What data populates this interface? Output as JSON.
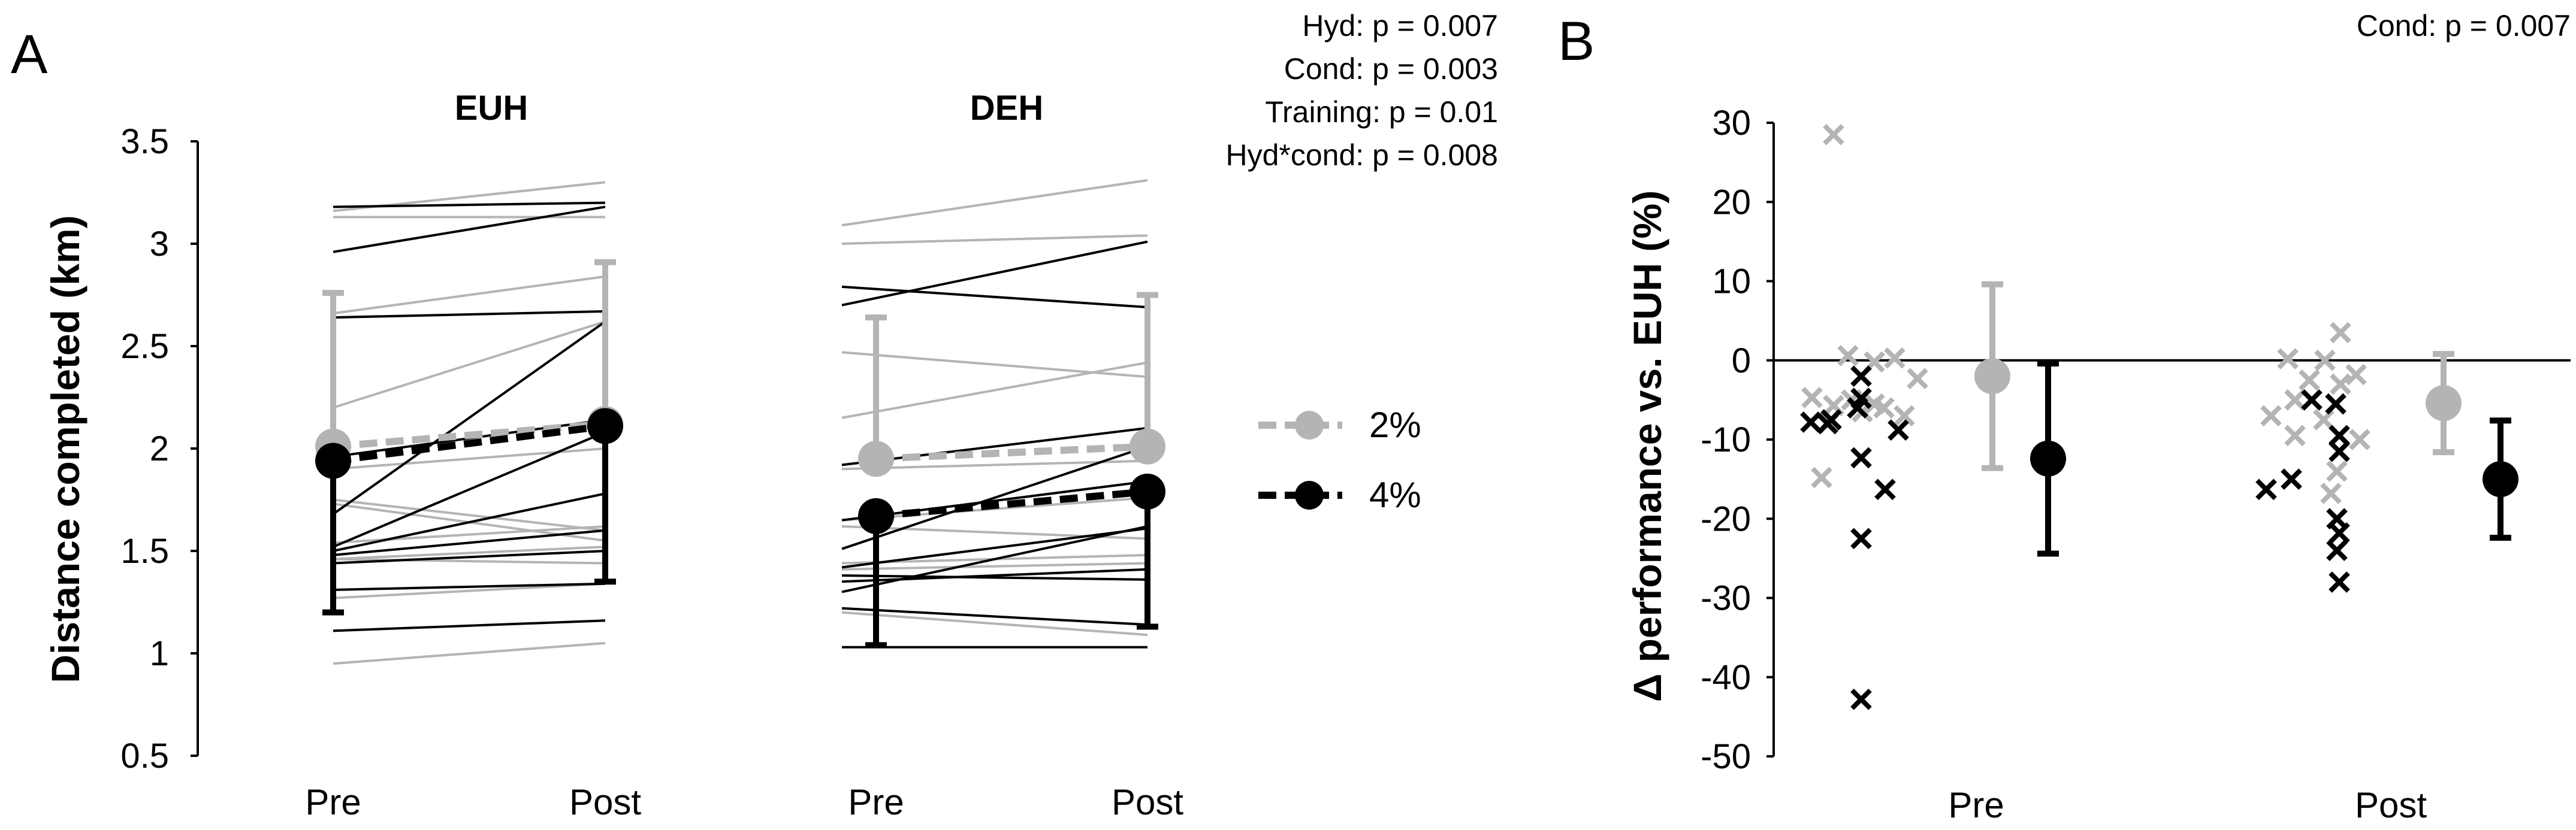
{
  "panels": {
    "a_label": "A",
    "b_label": "B"
  },
  "colors": {
    "pct2": "#b4b4b4",
    "pct4": "#000000",
    "axis": "#000000"
  },
  "chart_data": [
    {
      "type": "line",
      "ylabel": "Distance completed (km)",
      "ylim": [
        0.5,
        3.5
      ],
      "yticks": [
        "0.5",
        "1",
        "1.5",
        "2",
        "2.5",
        "3",
        "3.5"
      ],
      "ytick_values": [
        0.5,
        1,
        1.5,
        2,
        2.5,
        3,
        3.5
      ],
      "stats": [
        "Hyd: p = 0.007",
        "Cond: p = 0.003",
        "Training: p = 0.01",
        "Hyd*cond: p = 0.008"
      ],
      "legend": [
        {
          "label": "2%",
          "color": "#b4b4b4"
        },
        {
          "label": "4%",
          "color": "#000000"
        }
      ],
      "panels": [
        {
          "title": "EUH",
          "categories": [
            "Pre",
            "Post"
          ],
          "individual": {
            "2%": [
              [
                3.16,
                3.3
              ],
              [
                3.13,
                3.13
              ],
              [
                2.66,
                2.84
              ],
              [
                2.2,
                2.62
              ],
              [
                1.9,
                2.0
              ],
              [
                1.75,
                1.6
              ],
              [
                1.73,
                1.55
              ],
              [
                1.54,
                1.62
              ],
              [
                1.46,
                1.52
              ],
              [
                1.46,
                1.44
              ],
              [
                1.27,
                1.34
              ],
              [
                0.95,
                1.05
              ]
            ],
            "4%": [
              [
                3.18,
                3.2
              ],
              [
                2.96,
                3.18
              ],
              [
                2.64,
                2.67
              ],
              [
                1.96,
                2.14
              ],
              [
                1.68,
                2.62
              ],
              [
                1.52,
                2.08
              ],
              [
                1.5,
                1.78
              ],
              [
                1.48,
                1.6
              ],
              [
                1.44,
                1.5
              ],
              [
                1.31,
                1.34
              ],
              [
                1.11,
                1.16
              ]
            ]
          },
          "mean": {
            "2%": [
              2.01,
              2.12
            ],
            "4%": [
              1.94,
              2.11
            ]
          },
          "sd": {
            "2%": [
              0.75,
              0.79
            ],
            "4%": [
              0.74,
              0.76
            ]
          }
        },
        {
          "title": "DEH",
          "categories": [
            "Pre",
            "Post"
          ],
          "individual": {
            "2%": [
              [
                3.09,
                3.31
              ],
              [
                3.0,
                3.04
              ],
              [
                2.47,
                2.35
              ],
              [
                2.15,
                2.42
              ],
              [
                1.9,
                1.94
              ],
              [
                1.65,
                1.76
              ],
              [
                1.62,
                1.56
              ],
              [
                1.44,
                1.48
              ],
              [
                1.41,
                1.44
              ],
              [
                1.2,
                1.09
              ]
            ],
            "4%": [
              [
                2.79,
                2.69
              ],
              [
                2.7,
                3.01
              ],
              [
                1.92,
                2.1
              ],
              [
                1.65,
                1.84
              ],
              [
                1.51,
                2.01
              ],
              [
                1.42,
                1.61
              ],
              [
                1.38,
                1.36
              ],
              [
                1.35,
                1.41
              ],
              [
                1.3,
                1.62
              ],
              [
                1.22,
                1.14
              ],
              [
                1.03,
                1.03
              ]
            ]
          },
          "mean": {
            "2%": [
              1.95,
              2.01
            ],
            "4%": [
              1.67,
              1.79
            ]
          },
          "sd": {
            "2%": [
              0.69,
              0.74
            ],
            "4%": [
              0.63,
              0.66
            ]
          }
        }
      ]
    },
    {
      "type": "scatter",
      "ylabel": "Δ performance vs. EUH (%)",
      "ylim": [
        -50,
        30
      ],
      "yticks": [
        "30",
        "20",
        "10",
        "0",
        "-10",
        "-20",
        "-30",
        "-40",
        "-50"
      ],
      "ytick_values": [
        30,
        20,
        10,
        0,
        -10,
        -20,
        -30,
        -40,
        -50
      ],
      "categories": [
        "Pre",
        "Post"
      ],
      "stats": [
        "Cond: p = 0.007"
      ],
      "series": [
        {
          "name": "2%",
          "points": {
            "Pre": [
              28.5,
              0.6,
              0.3,
              -0.2,
              -2.3,
              -4.7,
              -5.0,
              -5.5,
              -5.7,
              -6.0,
              -6.5,
              -7.0,
              -14.8
            ],
            "Post": [
              3.5,
              0.2,
              0.0,
              -1.8,
              -2.5,
              -3.0,
              -5.0,
              -7.0,
              -7.5,
              -9.5,
              -10.0,
              -14.0,
              -16.8
            ]
          },
          "mean": {
            "Pre": -2.0,
            "Post": -5.4
          },
          "sd": {
            "Pre": 11.6,
            "Post": 6.2
          }
        },
        {
          "name": "4%",
          "points": {
            "Pre": [
              -2.0,
              -4.8,
              -6.0,
              -7.5,
              -7.8,
              -8.0,
              -8.8,
              -12.3,
              -16.3,
              -22.5,
              -42.8
            ],
            "Post": [
              -5.0,
              -5.5,
              -9.5,
              -11.5,
              -15.0,
              -16.3,
              -20.0,
              -21.8,
              -24.0,
              -28.0
            ]
          },
          "mean": {
            "Pre": -12.4,
            "Post": -15.0
          },
          "sd": {
            "Pre": 12.0,
            "Post": 7.4
          }
        }
      ]
    }
  ]
}
